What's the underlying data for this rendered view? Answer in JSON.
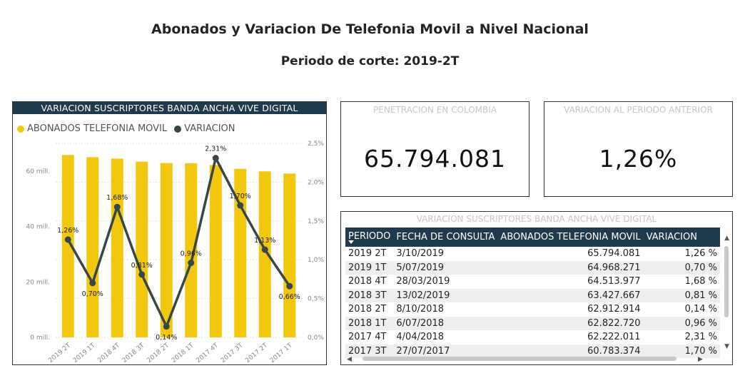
{
  "page": {
    "title": "Abonados y Variacion De Telefonia Movil a Nivel Nacional",
    "subtitle": "Periodo de corte: 2019-2T"
  },
  "colors": {
    "header_bg": "#1e3a4c",
    "bar": "#f2c80f",
    "line": "#374649"
  },
  "chart_panel": {
    "header": "VARIACION SUSCRIPTORES BANDA ANCHA VIVE DIGITAL",
    "legend": [
      "ABONADOS TELEFONIA MOVIL",
      "VARIACION"
    ]
  },
  "chart_data": {
    "type": "bar",
    "title": "VARIACION SUSCRIPTORES BANDA ANCHA VIVE DIGITAL",
    "categories": [
      "2019 2T",
      "2019 1T",
      "2018 4T",
      "2018 3T",
      "2018 2T",
      "2018 1T",
      "2017 4T",
      "2017 3T",
      "2017 2T",
      "2017 1T"
    ],
    "series": [
      {
        "name": "ABONADOS TELEFONIA MOVIL",
        "type": "bar",
        "axis": "left",
        "values": [
          65.8,
          65.0,
          64.5,
          63.4,
          62.9,
          62.8,
          62.2,
          60.8,
          59.9,
          59.1
        ]
      },
      {
        "name": "VARIACION",
        "type": "line",
        "axis": "right",
        "values": [
          1.26,
          0.7,
          1.68,
          0.81,
          0.14,
          0.96,
          2.31,
          1.7,
          1.13,
          0.66
        ],
        "labels": [
          "1,26%",
          "0,70%",
          "1,68%",
          "0,81%",
          "0,14%",
          "0,96%",
          "2,31%",
          "1,70%",
          "1,13%",
          "0,66%"
        ]
      }
    ],
    "y_left": {
      "ylim": [
        0,
        70
      ],
      "ticks": [
        0,
        20,
        40,
        60
      ],
      "tick_labels": [
        "0 mill.",
        "20 mill.",
        "40 mill.",
        "60 mill."
      ]
    },
    "y_right": {
      "ylim": [
        0,
        2.5
      ],
      "ticks": [
        0,
        0.5,
        1.0,
        1.5,
        2.0,
        2.5
      ],
      "tick_labels": [
        "0,0%",
        "0,5%",
        "1,0%",
        "1,5%",
        "2,0%",
        "2,5%"
      ]
    },
    "grid": true,
    "legend_position": "top-left"
  },
  "cards": {
    "penetracion": {
      "label": "PENETRACION EN COLOMBIA",
      "value": "65.794.081"
    },
    "variacion": {
      "label": "VARIACION AL PERIODO ANTERIOR",
      "value": "1,26%"
    }
  },
  "table": {
    "title": "VARIACION SUSCRIPTORES BANDA ANCHA VIVE DIGITAL",
    "headers": [
      "PERIODO",
      "FECHA DE CONSULTA",
      "ABONADOS TELEFONIA MOVIL",
      "VARIACION"
    ],
    "rows": [
      [
        "2019 2T",
        "3/10/2019",
        "65.794.081",
        "1,26 %"
      ],
      [
        "2019 1T",
        "5/07/2019",
        "64.968.271",
        "0,70 %"
      ],
      [
        "2018 4T",
        "28/03/2019",
        "64.513.977",
        "1,68 %"
      ],
      [
        "2018 3T",
        "13/02/2019",
        "63.427.667",
        "0,81 %"
      ],
      [
        "2018 2T",
        "8/10/2018",
        "62.912.914",
        "0,14 %"
      ],
      [
        "2018 1T",
        "6/07/2018",
        "62.822.720",
        "0,96 %"
      ],
      [
        "2017 4T",
        "4/04/2018",
        "62.222.011",
        "2,31 %"
      ],
      [
        "2017 3T",
        "27/07/2017",
        "60.783.374",
        "1,70 %"
      ]
    ]
  }
}
